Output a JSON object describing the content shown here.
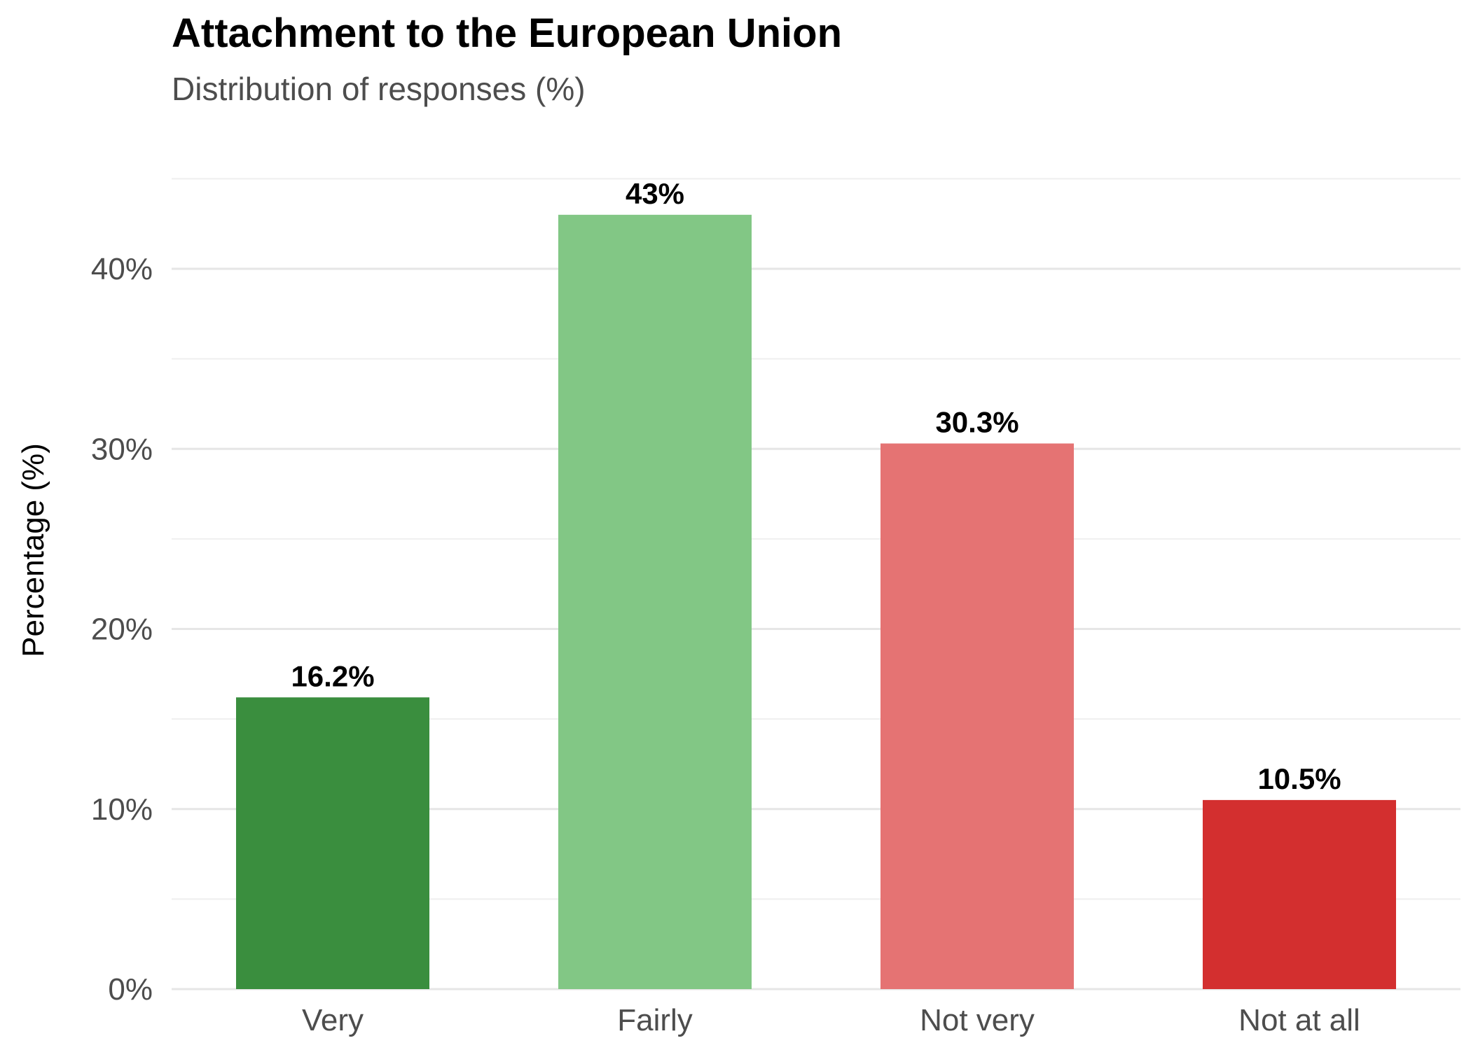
{
  "chart_data": {
    "type": "bar",
    "title": "Attachment to the European Union",
    "subtitle": "Distribution of responses (%)",
    "xlabel": "",
    "ylabel": "Percentage (%)",
    "categories": [
      "Very",
      "Fairly",
      "Not very",
      "Not at all"
    ],
    "values": [
      16.2,
      43,
      30.3,
      10.5
    ],
    "data_labels": [
      "16.2%",
      "43%",
      "30.3%",
      "10.5%"
    ],
    "colors": [
      "#3a8e3e",
      "#82c785",
      "#e57373",
      "#d32f2f"
    ],
    "ylim": [
      0,
      45
    ],
    "y_ticks": [
      0,
      10,
      20,
      30,
      40
    ],
    "y_tick_labels": [
      "0%",
      "10%",
      "20%",
      "30%",
      "40%"
    ],
    "grid": true,
    "legend": "none"
  }
}
